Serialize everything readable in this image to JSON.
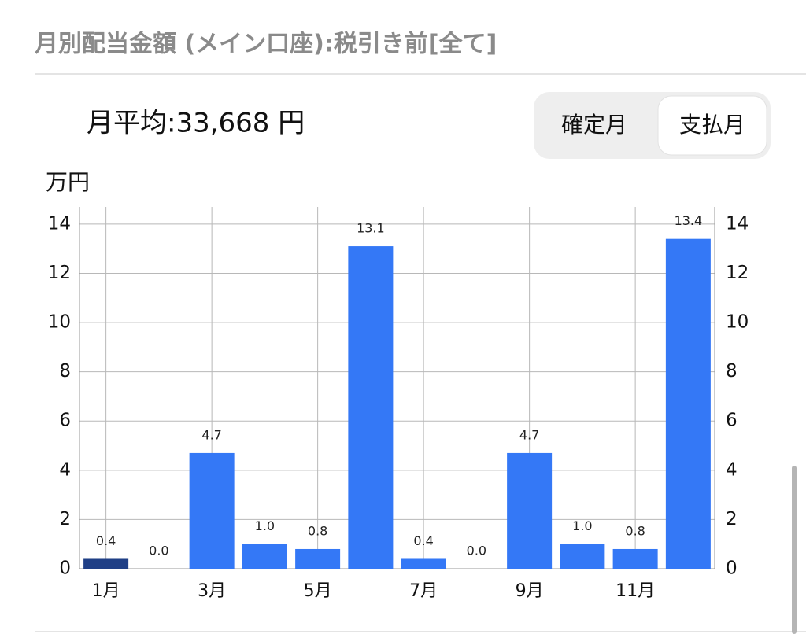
{
  "header": {
    "title": "月別配当金額 (メイン口座):税引き前[全て]"
  },
  "summary": {
    "average": "月平均:33,668 円"
  },
  "toggle": {
    "options": [
      "確定月",
      "支払月"
    ],
    "selected": 1
  },
  "chart_data": {
    "type": "bar",
    "y_label": "万円",
    "categories": [
      "1月",
      null,
      "3月",
      null,
      "5月",
      null,
      "7月",
      null,
      "9月",
      null,
      "11月",
      null
    ],
    "values": [
      0.4,
      0,
      4.7,
      1,
      0.8,
      13.1,
      0.4,
      0,
      4.7,
      1,
      0.8,
      13.4
    ],
    "value_labels": [
      "0.4",
      "0.0",
      "4.7",
      "1.0",
      "0.8",
      "13.1",
      "0.4",
      "0.0",
      "4.7",
      "1.0",
      "0.8",
      "13.4"
    ],
    "colors": [
      "#1f3f86",
      "#3478f6",
      "#3478f6",
      "#3478f6",
      "#3478f6",
      "#3478f6",
      "#3478f6",
      "#3478f6",
      "#3478f6",
      "#3478f6",
      "#3478f6",
      "#3478f6"
    ],
    "ylim": [
      0,
      14.7
    ],
    "yticks": [
      0,
      2,
      4,
      6,
      8,
      10,
      12,
      14
    ],
    "grid": true
  }
}
